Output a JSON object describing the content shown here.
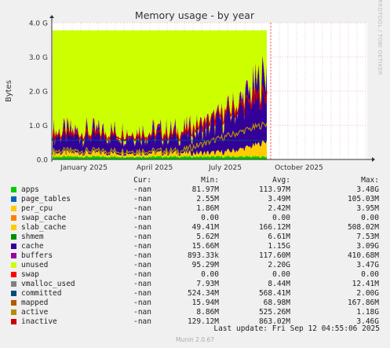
{
  "chart_data": {
    "type": "area",
    "title": "Memory usage - by year",
    "ylabel": "Bytes",
    "ylim": [
      0,
      4.0
    ],
    "yticks": [
      {
        "v": 0,
        "label": "0.0"
      },
      {
        "v": 1,
        "label": "1.0 G"
      },
      {
        "v": 2,
        "label": "2.0 G"
      },
      {
        "v": 3,
        "label": "3.0 G"
      },
      {
        "v": 4,
        "label": "4.0 G"
      }
    ],
    "xticks": [
      "January 2025",
      "April 2025",
      "July 2025",
      "October 2025"
    ],
    "grid": true,
    "series": [
      {
        "name": "apps",
        "color": "#00cc00",
        "cur": "-nan",
        "min": "81.97M",
        "avg": "113.97M",
        "max": "3.48G"
      },
      {
        "name": "page_tables",
        "color": "#0066b3",
        "cur": "-nan",
        "min": "2.55M",
        "avg": "3.49M",
        "max": "105.03M"
      },
      {
        "name": "per_cpu",
        "color": "#ffcc00",
        "cur": "-nan",
        "min": "1.86M",
        "avg": "2.42M",
        "max": "3.95M"
      },
      {
        "name": "swap_cache",
        "color": "#ff8000",
        "cur": "-nan",
        "min": "0.00",
        "avg": "0.00",
        "max": "0.00"
      },
      {
        "name": "slab_cache",
        "color": "#ffcc00",
        "cur": "-nan",
        "min": "49.41M",
        "avg": "166.12M",
        "max": "508.02M"
      },
      {
        "name": "shmem",
        "color": "#008f00",
        "cur": "-nan",
        "min": "5.62M",
        "avg": "6.61M",
        "max": "7.53M"
      },
      {
        "name": "cache",
        "color": "#330099",
        "cur": "-nan",
        "min": "15.66M",
        "avg": "1.15G",
        "max": "3.09G"
      },
      {
        "name": "buffers",
        "color": "#990099",
        "cur": "-nan",
        "min": "893.33k",
        "avg": "117.60M",
        "max": "410.68M"
      },
      {
        "name": "unused",
        "color": "#ccff00",
        "cur": "-nan",
        "min": "95.29M",
        "avg": "2.20G",
        "max": "3.47G"
      },
      {
        "name": "swap",
        "color": "#ff0000",
        "cur": "-nan",
        "min": "0.00",
        "avg": "0.00",
        "max": "0.00"
      },
      {
        "name": "vmalloc_used",
        "color": "#808080",
        "cur": "-nan",
        "min": "7.93M",
        "avg": "8.44M",
        "max": "12.41M"
      },
      {
        "name": "committed",
        "color": "#004d80",
        "cur": "-nan",
        "min": "524.34M",
        "avg": "568.41M",
        "max": "2.00G"
      },
      {
        "name": "mapped",
        "color": "#b35a00",
        "cur": "-nan",
        "min": "15.94M",
        "avg": "68.98M",
        "max": "167.86M"
      },
      {
        "name": "active",
        "color": "#b38f00",
        "cur": "-nan",
        "min": "8.86M",
        "avg": "525.26M",
        "max": "1.18G"
      },
      {
        "name": "inactive",
        "color": "#cc0000",
        "cur": "-nan",
        "min": "129.12M",
        "avg": "863.02M",
        "max": "3.46G"
      }
    ]
  },
  "legend_header": {
    "cur": "Cur:",
    "min": "Min:",
    "avg": "Avg:",
    "max": "Max:"
  },
  "last_update": "Last update: Fri Sep 12 04:55:06 2025",
  "footer": "Munin 2.0.67",
  "side_label": "RRDTOOL / TOBI OETIKER"
}
